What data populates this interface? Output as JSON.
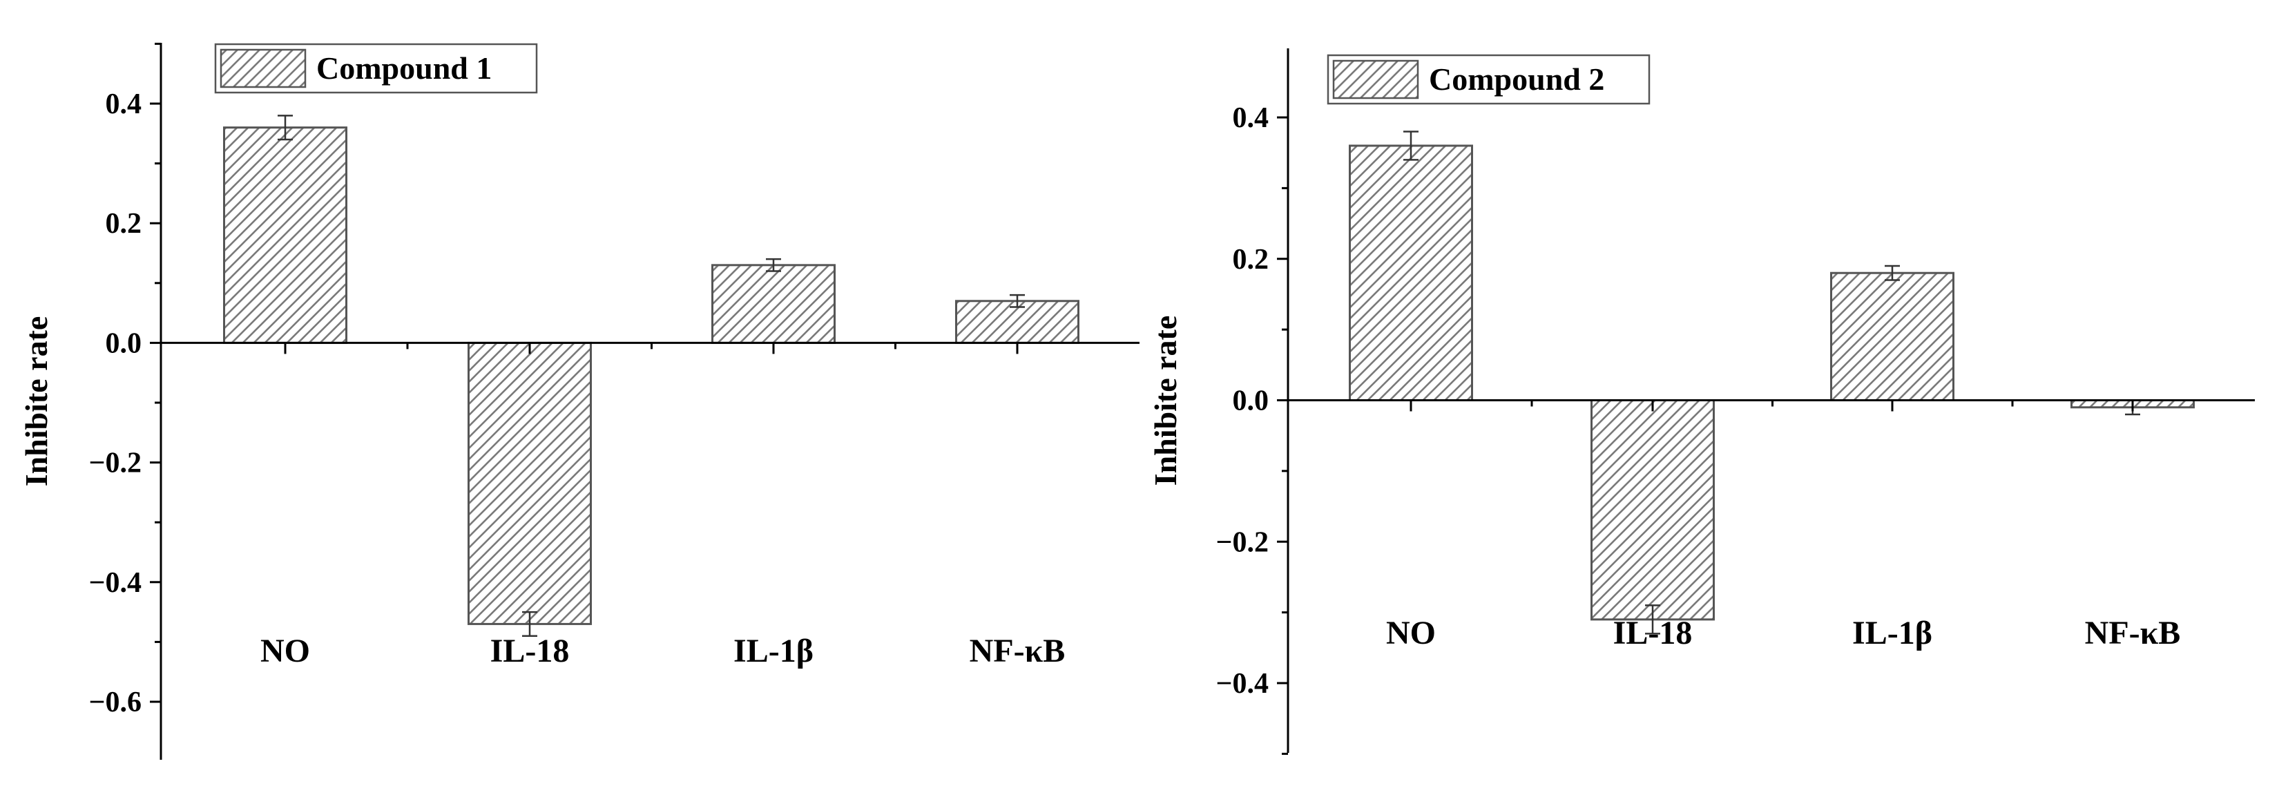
{
  "chart_data": [
    {
      "type": "bar",
      "legend": "Compound 1",
      "legend_position": "top-left",
      "ylabel": "Inhibite rate",
      "ylim": [
        -0.7,
        0.5
      ],
      "yticks": [
        "0.4",
        "0.2",
        "0.0",
        "−0.2",
        "−0.4",
        "−0.6"
      ],
      "ytick_values": [
        0.4,
        0.2,
        0.0,
        -0.2,
        -0.4,
        -0.6
      ],
      "categories": [
        "NO",
        "IL-18",
        "IL-1β",
        "NF-κB"
      ],
      "values": [
        0.36,
        -0.47,
        0.13,
        0.07
      ],
      "errors": [
        0.02,
        0.02,
        0.01,
        0.01
      ],
      "pattern": "diagonal-hatch",
      "bar_color": "#777777"
    },
    {
      "type": "bar",
      "legend": "Compound 2",
      "legend_position": "top-left",
      "ylabel": "Inhibite rate",
      "ylim": [
        -0.5,
        0.5
      ],
      "yticks": [
        "0.4",
        "0.2",
        "0.0",
        "−0.2",
        "−0.4"
      ],
      "ytick_values": [
        0.4,
        0.2,
        0.0,
        -0.2,
        -0.4
      ],
      "categories": [
        "NO",
        "IL-18",
        "IL-1β",
        "NF-κB"
      ],
      "values": [
        0.36,
        -0.31,
        0.18,
        -0.01
      ],
      "errors": [
        0.02,
        0.02,
        0.01,
        0.01
      ],
      "pattern": "diagonal-hatch",
      "bar_color": "#777777"
    }
  ]
}
